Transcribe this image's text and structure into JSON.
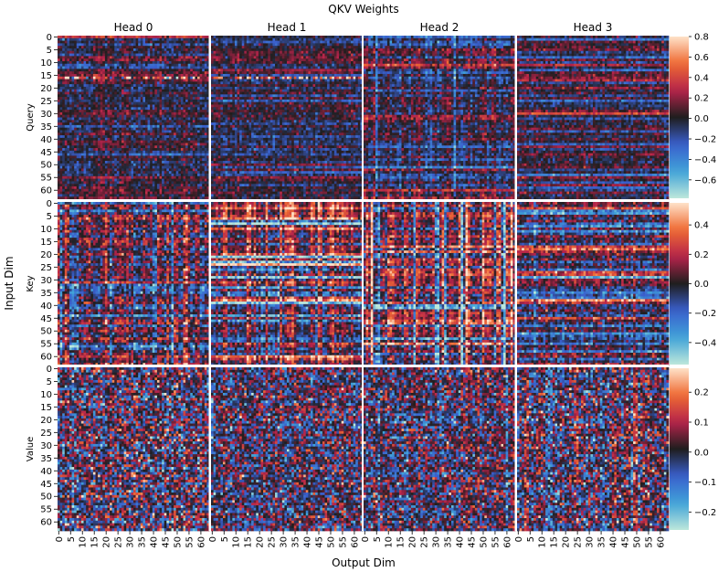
{
  "chart_data": {
    "type": "heatmap",
    "title": "QKV Weights",
    "xlabel": "Output Dim",
    "ylabel": "Input Dim",
    "columns": [
      "Head 0",
      "Head 1",
      "Head 2",
      "Head 3"
    ],
    "rows": [
      {
        "name": "Query",
        "colorbar_ticks": [
          0.8,
          0.6,
          0.4,
          0.2,
          0.0,
          -0.2,
          -0.4,
          -0.6
        ],
        "colorbar_labels": [
          "0.8",
          "0.6",
          "0.4",
          "0.2",
          "0.0",
          "−0.2",
          "−0.4",
          "−0.6"
        ],
        "vmin": -0.78,
        "vmax": 0.8
      },
      {
        "name": "Key",
        "colorbar_ticks": [
          0.4,
          0.2,
          0.0,
          -0.2,
          -0.4
        ],
        "colorbar_labels": [
          "0.4",
          "0.2",
          "0.0",
          "−0.2",
          "−0.4"
        ],
        "vmin": -0.55,
        "vmax": 0.55
      },
      {
        "name": "Value",
        "colorbar_ticks": [
          0.2,
          0.1,
          0.0,
          -0.1,
          -0.2
        ],
        "colorbar_labels": [
          "0.2",
          "0.1",
          "0.0",
          "−0.1",
          "−0.2"
        ],
        "vmin": -0.26,
        "vmax": 0.28
      }
    ],
    "x_tick_labels": [
      "0",
      "5",
      "10",
      "15",
      "20",
      "25",
      "30",
      "35",
      "40",
      "45",
      "50",
      "55",
      "60"
    ],
    "y_tick_labels": [
      "0",
      "5",
      "10",
      "15",
      "20",
      "25",
      "30",
      "35",
      "40",
      "45",
      "50",
      "55",
      "60"
    ],
    "cells_per_head": 64,
    "colormap": "icefire",
    "colormap_stops": [
      "#bde7db",
      "#40a3d8",
      "#3a5fcd",
      "#1f1e1e",
      "#b5234b",
      "#ef6a32",
      "#fee2c9"
    ],
    "grid_separator_color": "#ffffff"
  }
}
